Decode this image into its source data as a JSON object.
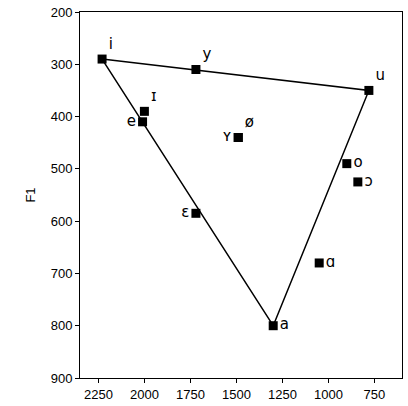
{
  "chart_data": {
    "type": "scatter",
    "y_label": "F1",
    "xlim": [
      2350,
      600
    ],
    "ylim": [
      900,
      200
    ],
    "xticks": [
      2250,
      2000,
      1750,
      1500,
      1250,
      1000,
      750
    ],
    "yticks": [
      200,
      300,
      400,
      500,
      600,
      700,
      800,
      900
    ],
    "grid": false,
    "color": "#000000",
    "marker": "square",
    "points": [
      {
        "label": "i",
        "x": 2230,
        "y": 290
      },
      {
        "label": "y",
        "x": 1720,
        "y": 310
      },
      {
        "label": "u",
        "x": 780,
        "y": 350
      },
      {
        "label": "ɪ",
        "x": 2000,
        "y": 390
      },
      {
        "label": "e",
        "x": 2010,
        "y": 410
      },
      {
        "label": "ʏ",
        "x": 1490,
        "y": 440
      },
      {
        "label": "ø",
        "x": 1490,
        "y": 440
      },
      {
        "label": "o",
        "x": 900,
        "y": 490
      },
      {
        "label": "ɔ",
        "x": 840,
        "y": 525
      },
      {
        "label": "ɛ",
        "x": 1720,
        "y": 585
      },
      {
        "label": "ɑ",
        "x": 1050,
        "y": 680
      },
      {
        "label": "a",
        "x": 1300,
        "y": 800
      }
    ],
    "triangle": [
      "i",
      "u",
      "a",
      "i"
    ]
  }
}
